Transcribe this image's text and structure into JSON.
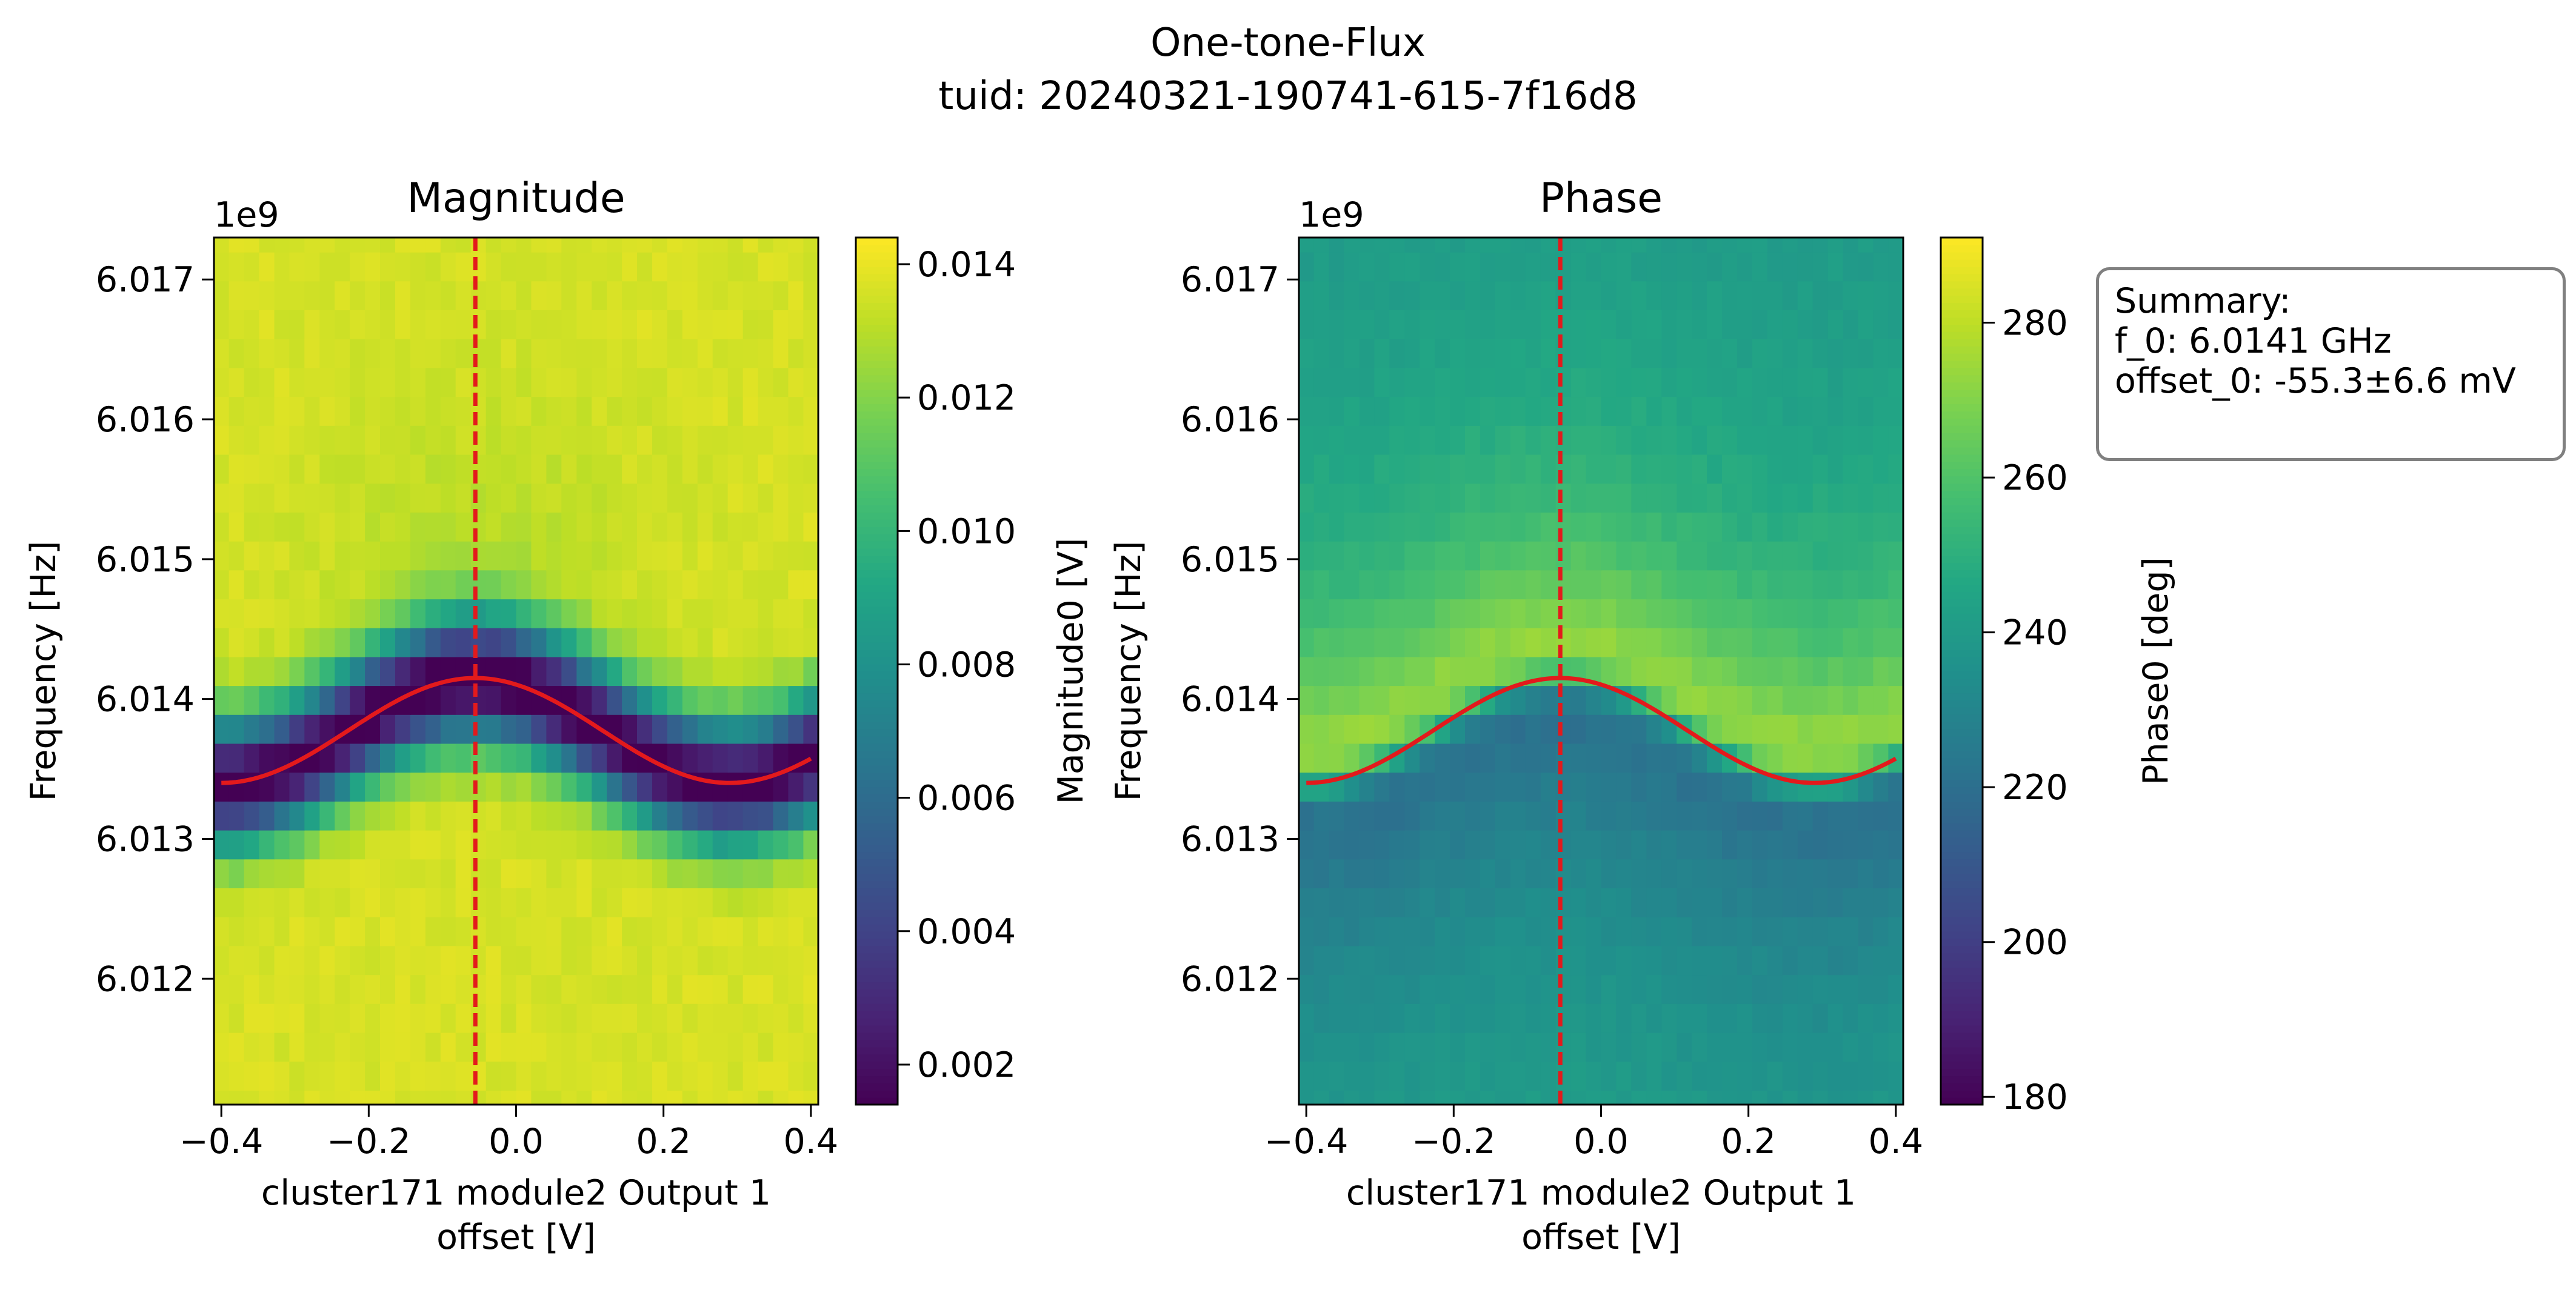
{
  "suptitle": "One-tone-Flux",
  "subtitle": "tuid: 20240321-190741-615-7f16d8",
  "summary": {
    "heading": "Summary:",
    "lines": [
      "f_0: 6.0141 GHz",
      "offset_0: -55.3±6.6 mV"
    ]
  },
  "colors": {
    "fit_line": "#e31a1c",
    "marker_line": "#e31a1c",
    "colormap": "viridis"
  },
  "chart_data": [
    {
      "type": "heatmap",
      "title": "Magnitude",
      "xlabel": "cluster171 module2 Output 1\noffset [V]",
      "ylabel": "Frequency [Hz]",
      "y_offset_label": "1e9",
      "xlim": [
        -0.41,
        0.41
      ],
      "ylim": [
        6.0111,
        6.0173
      ],
      "xticks": [
        -0.4,
        -0.2,
        0.0,
        0.2,
        0.4
      ],
      "xtick_labels": [
        "−0.4",
        "−0.2",
        "0.0",
        "0.2",
        "0.4"
      ],
      "yticks": [
        6.012,
        6.013,
        6.014,
        6.015,
        6.016,
        6.017
      ],
      "ytick_labels": [
        "6.012",
        "6.013",
        "6.014",
        "6.015",
        "6.016",
        "6.017"
      ],
      "colorbar": {
        "label": "Magnitude0 [V]",
        "vmin": 0.0014,
        "vmax": 0.0144,
        "ticks": [
          0.002,
          0.004,
          0.006,
          0.008,
          0.01,
          0.012,
          0.014
        ],
        "tick_labels": [
          "0.002",
          "0.004",
          "0.006",
          "0.008",
          "0.010",
          "0.012",
          "0.014"
        ]
      },
      "grid": {
        "x_points": 40,
        "y_points": 31,
        "x_range": [
          -0.4,
          0.4
        ],
        "y_range_ghz": [
          6.0111,
          6.0173
        ]
      },
      "fit_curve": {
        "description": "f(x) = 6.013775 + 0.000375*cos(2*pi*(x+0.0553)/0.69) GHz",
        "center_ghz": 6.013775,
        "amplitude_ghz": 0.000375,
        "period_v": 0.69,
        "x0_v": -0.0553
      },
      "vline_x": -0.0553
    },
    {
      "type": "heatmap",
      "title": "Phase",
      "xlabel": "cluster171 module2 Output 1\noffset [V]",
      "ylabel": "Frequency [Hz]",
      "y_offset_label": "1e9",
      "xlim": [
        -0.41,
        0.41
      ],
      "ylim": [
        6.0111,
        6.0173
      ],
      "xticks": [
        -0.4,
        -0.2,
        0.0,
        0.2,
        0.4
      ],
      "xtick_labels": [
        "−0.4",
        "−0.2",
        "0.0",
        "0.2",
        "0.4"
      ],
      "yticks": [
        6.012,
        6.013,
        6.014,
        6.015,
        6.016,
        6.017
      ],
      "ytick_labels": [
        "6.012",
        "6.013",
        "6.014",
        "6.015",
        "6.016",
        "6.017"
      ],
      "colorbar": {
        "label": "Phase0 [deg]",
        "vmin": 179,
        "vmax": 291,
        "ticks": [
          180,
          200,
          220,
          240,
          260,
          280
        ],
        "tick_labels": [
          "180",
          "200",
          "220",
          "240",
          "260",
          "280"
        ]
      },
      "grid": {
        "x_points": 40,
        "y_points": 31,
        "x_range": [
          -0.4,
          0.4
        ],
        "y_range_ghz": [
          6.0111,
          6.0173
        ]
      },
      "fit_curve": {
        "description": "f(x) = 6.013775 + 0.000375*cos(2*pi*(x+0.0553)/0.69) GHz",
        "center_ghz": 6.013775,
        "amplitude_ghz": 0.000375,
        "period_v": 0.69,
        "x0_v": -0.0553
      },
      "vline_x": -0.0553
    }
  ]
}
